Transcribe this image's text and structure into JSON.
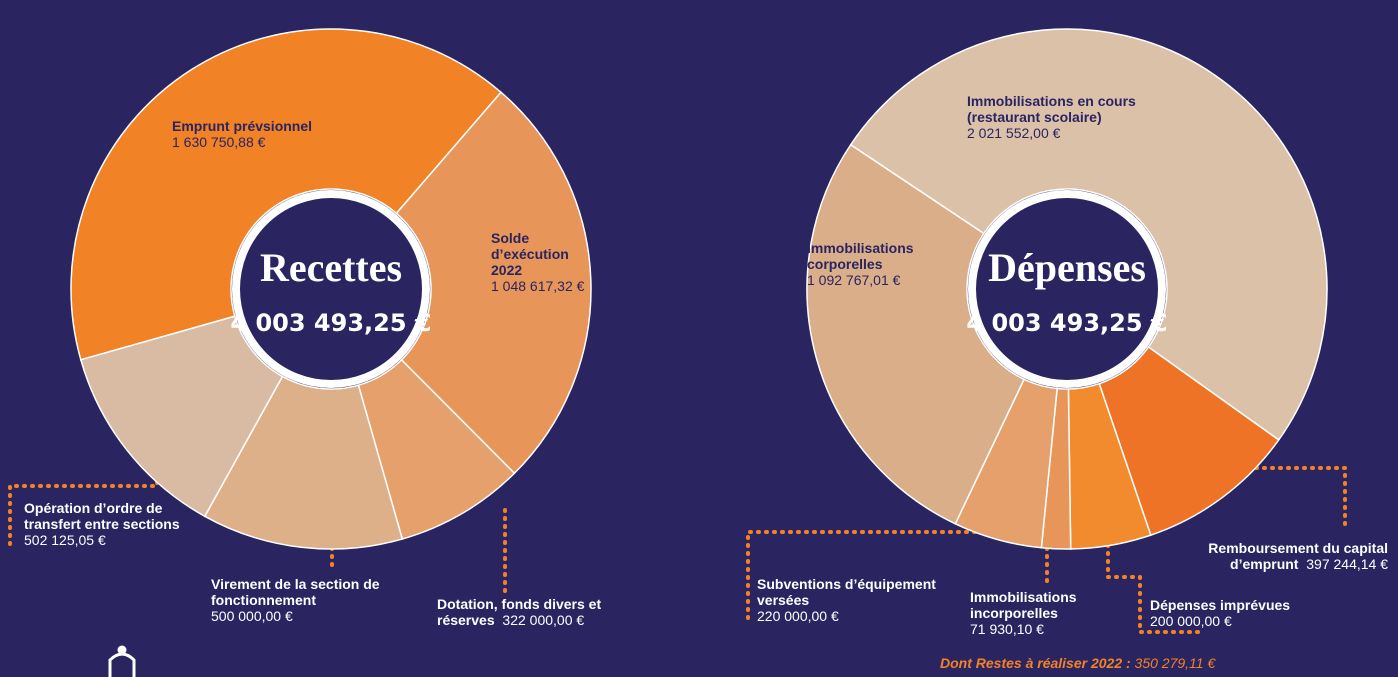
{
  "chart_data": [
    {
      "type": "donut",
      "title": "Recettes",
      "total": "4 003 493,25 €",
      "categories": [
        "Emprunt prévsionnel",
        "Solde d’exécution 2022",
        "Dotation, fonds divers et réserves",
        "Virement de la section de fonctionnement",
        "Opération d’ordre de transfert entre sections"
      ],
      "values": [
        1630750.88,
        1048617.32,
        322000.0,
        500000.0,
        502125.05
      ],
      "value_labels": [
        "1 630 750,88 €",
        "1 048 617,32 €",
        "322 000,00 €",
        "500 000,00 €",
        "502 125,05 €"
      ],
      "colors": [
        "#f28226",
        "#e8955a",
        "#e5a06c",
        "#ddb08a",
        "#d8bba2"
      ]
    },
    {
      "type": "donut",
      "title": "Dépenses",
      "total": "4 003 493,25 €",
      "categories": [
        "Immobilisations en cours (restaurant scolaire)",
        "Remboursement du capital d’emprunt",
        "Dépenses imprévues",
        "Immobilisations incorporelles",
        "Subventions d’équipement versées",
        "Immobilisations corporelles"
      ],
      "values": [
        2021552.0,
        397244.14,
        200000.0,
        71930.1,
        220000.0,
        1092767.01
      ],
      "value_labels": [
        "2 021 552,00 €",
        "397 244,14 €",
        "200 000,00 €",
        "71 930,10 €",
        "220 000,00 €",
        "1 092 767,01 €"
      ],
      "colors": [
        "#dcc1a9",
        "#ee7326",
        "#f28a2e",
        "#e8955a",
        "#e5a06c",
        "#d9ae88"
      ]
    }
  ],
  "footnote": {
    "label": "Dont Restes à réaliser 2022 :",
    "value": "350 279,11 €"
  }
}
